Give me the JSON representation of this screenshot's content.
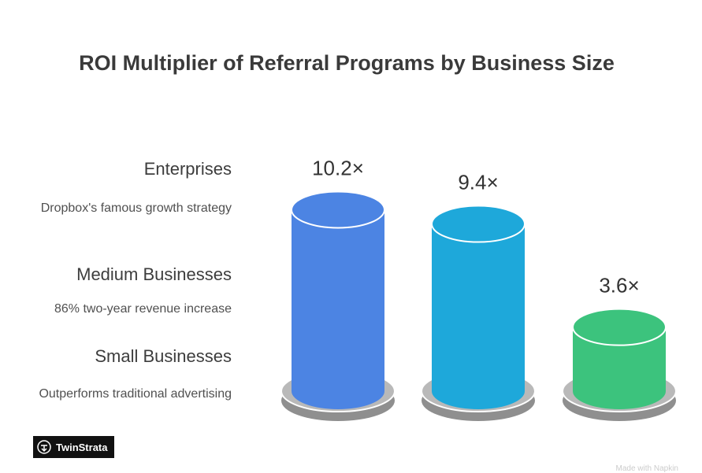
{
  "chart_data": {
    "type": "bar",
    "title": "ROI Multiplier of Referral Programs by Business Size",
    "categories": [
      "Enterprises",
      "Medium Businesses",
      "Small Businesses"
    ],
    "descriptions": [
      "Dropbox's famous growth strategy",
      "86% two-year revenue increase",
      "Outperforms traditional advertising"
    ],
    "values": [
      10.2,
      9.4,
      3.6
    ],
    "value_labels": [
      "10.2×",
      "9.4×",
      "3.6×"
    ],
    "colors": [
      "#4c84e3",
      "#1ea8da",
      "#3cc37d"
    ]
  },
  "brand": {
    "name": "TwinStrata"
  },
  "footer": "Made with Napkin"
}
